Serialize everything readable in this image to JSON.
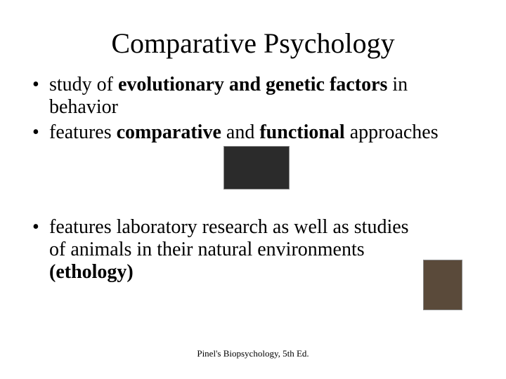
{
  "title": "Comparative Psychology",
  "bullets": {
    "b1": {
      "part1": "study of ",
      "bold1": "evolutionary and genetic factors",
      "part2": " in behavior"
    },
    "b2": {
      "part1": "features ",
      "bold1": "comparative",
      "part2": " and ",
      "bold2": "functional",
      "part3": " approaches"
    },
    "b3": {
      "part1": "features laboratory research as well as studies of animals in their natural environments ",
      "bold1": "(ethology)"
    }
  },
  "footer": "Pinel's Biopsychology, 5th Ed.",
  "images": {
    "hands": {
      "width": 92,
      "height": 60,
      "bg": "#2b2b2b"
    },
    "chimp": {
      "width": 54,
      "height": 70,
      "bg": "#5a4a3a"
    }
  }
}
